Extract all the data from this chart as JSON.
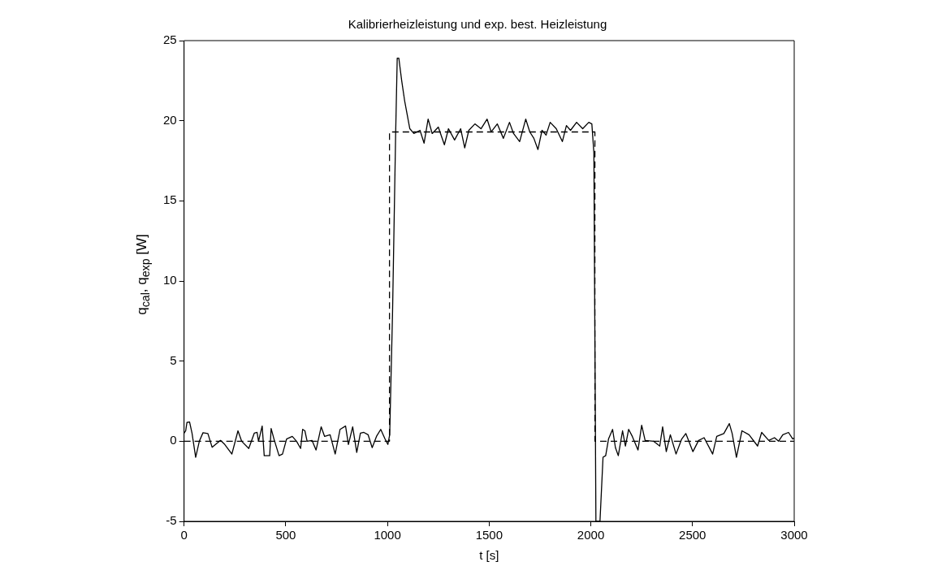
{
  "chart_data": {
    "type": "line",
    "title": "Kalibrierheizleistung und exp. best. Heizleistung",
    "xlabel": "t [s]",
    "ylabel": "q$_{cal}$, q$_{exp}$ [W]",
    "xlim": [
      0,
      3000
    ],
    "xticks": [
      0,
      500,
      1000,
      1500,
      2000,
      2500,
      3000
    ],
    "ylim": [
      -5,
      25
    ],
    "yticks": [
      -5,
      0,
      5,
      10,
      15,
      20,
      25
    ],
    "legend": false,
    "grid": false,
    "series": [
      {
        "color": "#000000",
        "line_style": "solid",
        "x": [
          0,
          8,
          14,
          27,
          39,
          57,
          75,
          93,
          117,
          138,
          179,
          200,
          235,
          265,
          283,
          318,
          345,
          359,
          366,
          384,
          394,
          421,
          428,
          442,
          467,
          484,
          504,
          532,
          553,
          573,
          583,
          594,
          605,
          629,
          649,
          674,
          691,
          718,
          743,
          767,
          794,
          808,
          829,
          849,
          867,
          884,
          905,
          925,
          946,
          967,
          988,
          1002,
          1011,
          1025,
          1040,
          1048,
          1056,
          1070,
          1085,
          1110,
          1130,
          1160,
          1180,
          1200,
          1220,
          1250,
          1280,
          1300,
          1330,
          1360,
          1380,
          1400,
          1430,
          1460,
          1490,
          1510,
          1540,
          1570,
          1600,
          1620,
          1650,
          1680,
          1700,
          1720,
          1740,
          1760,
          1780,
          1800,
          1830,
          1860,
          1880,
          1900,
          1930,
          1960,
          1990,
          2005,
          2015,
          2025,
          2045,
          2060,
          2073,
          2087,
          2107,
          2121,
          2135,
          2156,
          2170,
          2186,
          2204,
          2232,
          2250,
          2267,
          2308,
          2339,
          2353,
          2371,
          2391,
          2419,
          2447,
          2467,
          2502,
          2530,
          2557,
          2599,
          2619,
          2654,
          2681,
          2695,
          2716,
          2743,
          2778,
          2820,
          2840,
          2875,
          2903,
          2923,
          2944,
          2972,
          2993,
          3000
        ],
        "values": [
          0.5,
          0.65,
          1.17,
          1.2,
          0.5,
          -1.0,
          0,
          0.53,
          0.48,
          -0.38,
          0.05,
          -0.2,
          -0.8,
          0.65,
          0,
          -0.45,
          0.5,
          0.55,
          0,
          0.95,
          -0.9,
          -0.9,
          0.8,
          0.14,
          -0.9,
          -0.8,
          0.14,
          0.3,
          0,
          -0.45,
          0.74,
          0.65,
          0,
          0.05,
          -0.55,
          0.9,
          0.3,
          0.4,
          -0.8,
          0.74,
          0.95,
          -0.2,
          0.9,
          -0.7,
          0.5,
          0.55,
          0.4,
          -0.4,
          0.3,
          0.74,
          0.14,
          -0.2,
          0.4,
          8,
          19,
          23.9,
          23.9,
          22.5,
          21.2,
          19.5,
          19.2,
          19.4,
          18.6,
          20.1,
          19.2,
          19.6,
          18.5,
          19.5,
          18.8,
          19.5,
          18.3,
          19.4,
          19.8,
          19.5,
          20.1,
          19.3,
          19.8,
          18.9,
          19.9,
          19.2,
          18.7,
          20.1,
          19.3,
          18.9,
          18.2,
          19.4,
          19.1,
          19.9,
          19.5,
          18.7,
          19.7,
          19.4,
          19.9,
          19.5,
          19.9,
          19.8,
          18,
          -5,
          -5,
          -1,
          -0.9,
          0.14,
          0.74,
          -0.4,
          -0.9,
          0.65,
          -0.3,
          0.74,
          0.3,
          -0.55,
          1.0,
          0.05,
          0,
          -0.3,
          0.9,
          -0.65,
          0.4,
          -0.8,
          0.14,
          0.48,
          -0.65,
          0.05,
          0.22,
          -0.8,
          0.3,
          0.48,
          1.1,
          0.48,
          -1.0,
          0.65,
          0.4,
          -0.3,
          0.55,
          0.05,
          0.22,
          0,
          0.4,
          0.55,
          0.14,
          0.2
        ]
      },
      {
        "color": "#000000",
        "line_style": "dashed",
        "x": [
          0,
          1010,
          1010,
          2020,
          2020,
          3000
        ],
        "values": [
          0,
          0,
          19.3,
          19.3,
          0,
          0
        ]
      }
    ]
  }
}
